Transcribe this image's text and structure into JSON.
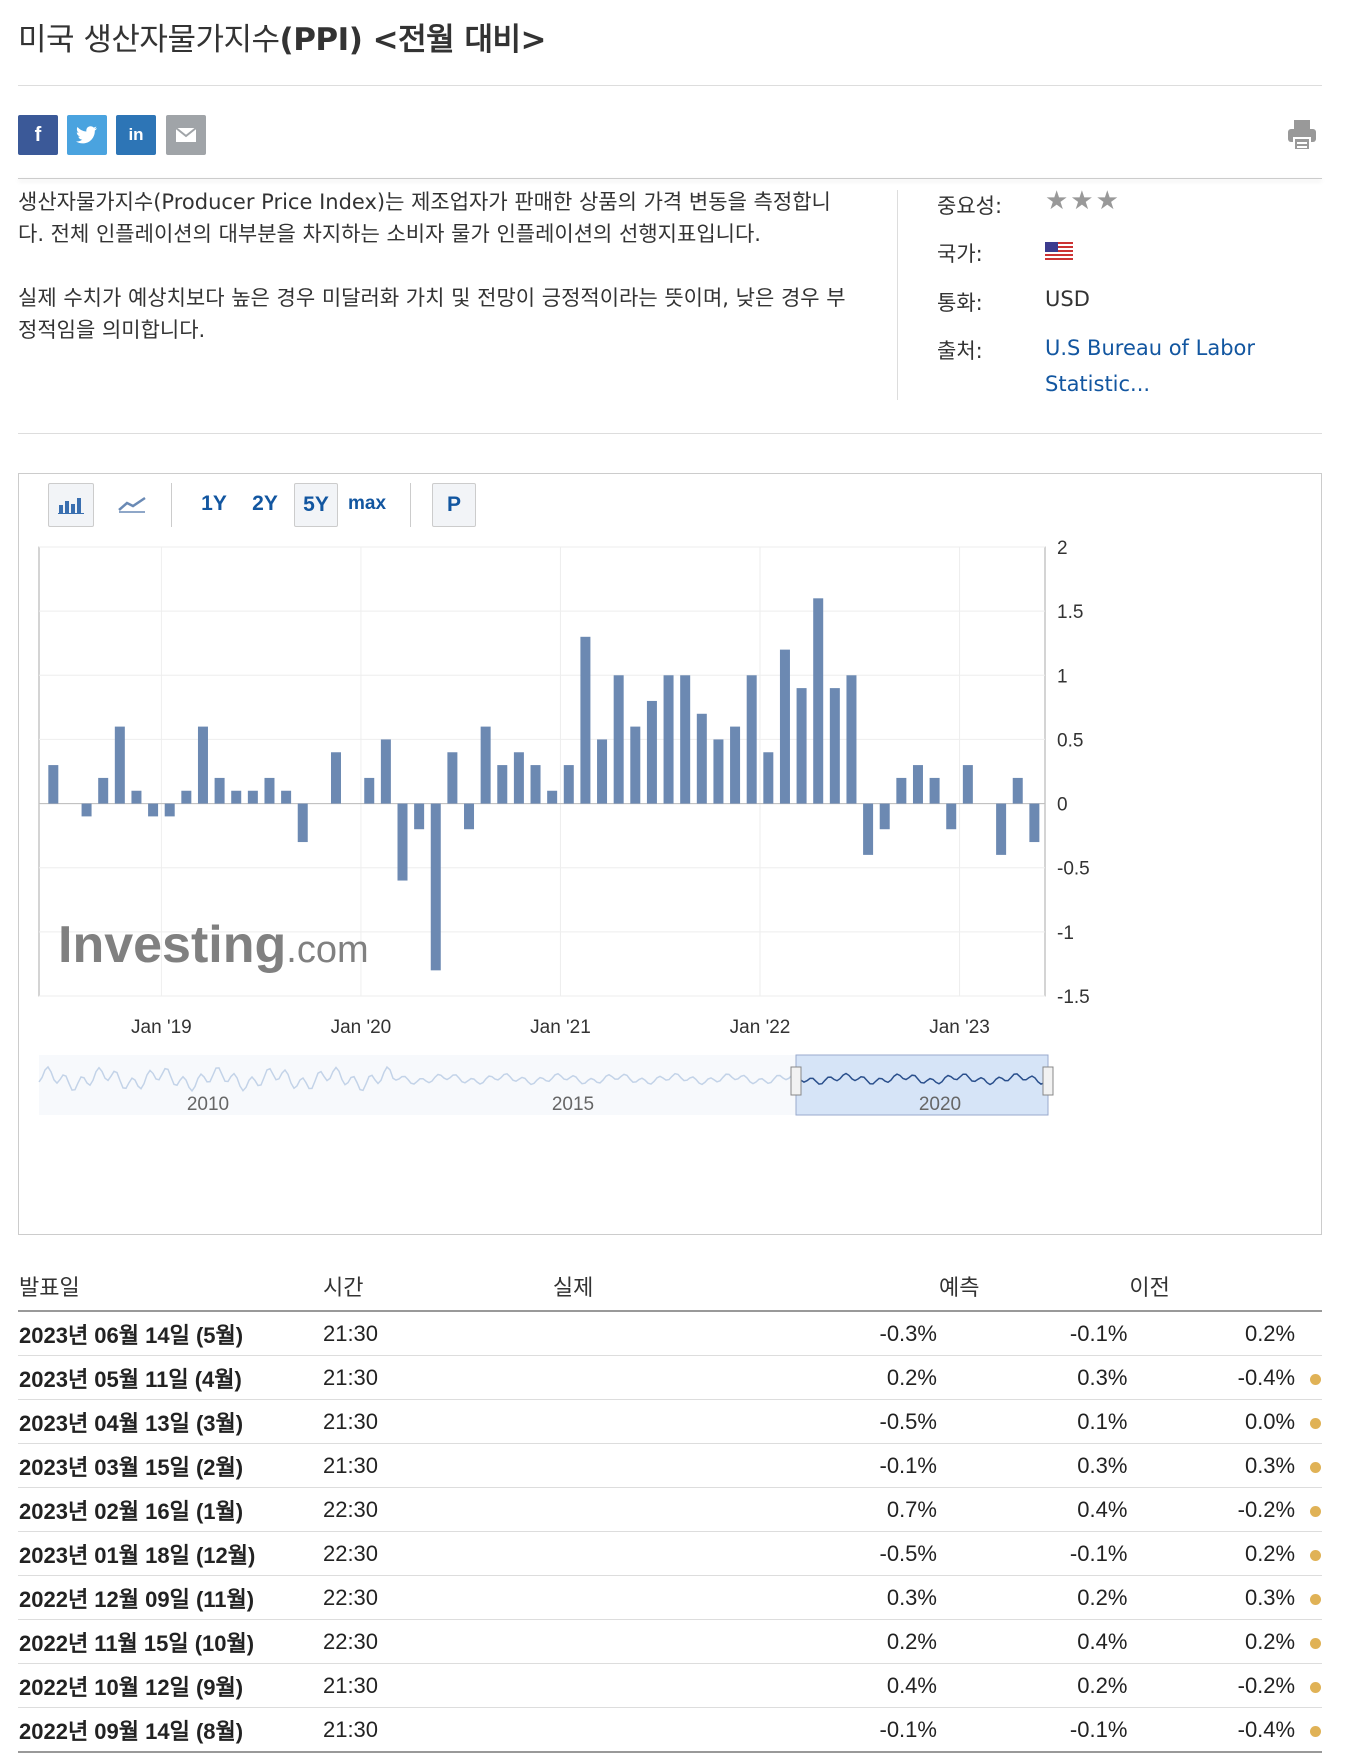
{
  "title": {
    "normal": "미국 생산자물가지수",
    "bold": "(PPI) <전월 대비>"
  },
  "share": {
    "facebook": "f",
    "twitter": "t",
    "linkedin": "in"
  },
  "description": [
    "생산자물가지수(Producer Price Index)는 제조업자가 판매한 상품의 가격 변동을 측정합니다. 전체 인플레이션의 대부분을 차지하는 소비자 물가 인플레이션의 선행지표입니다.",
    "실제 수치가 예상치보다 높은 경우 미달러화 가치 및 전망이 긍정적이라는 뜻이며, 낮은 경우 부정적임을 의미합니다."
  ],
  "meta": {
    "importance_label": "중요성:",
    "importance_stars": "★★★",
    "country_label": "국가:",
    "country_icon": "us-flag-icon",
    "currency_label": "통화:",
    "currency": "USD",
    "source_label": "출처:",
    "source": "U.S Bureau of Labor Statistic..."
  },
  "toolbar": {
    "periods": [
      "1Y",
      "2Y",
      "5Y",
      "max"
    ],
    "selected": "5Y",
    "p": "P"
  },
  "colors": {
    "bar": "#6c89b2",
    "positive": "#e2231a",
    "negative": "#1a73d9",
    "dot": "#e0b256",
    "link": "#1256a0"
  },
  "chart_data": {
    "type": "bar",
    "title": "",
    "ylim": [
      -1.5,
      2
    ],
    "yticks": [
      "2",
      "1.5",
      "1",
      "0.5",
      "0",
      "-0.5",
      "-1",
      "-1.5"
    ],
    "xticks": [
      "Jan '19",
      "Jan '20",
      "Jan '21",
      "Jan '22",
      "Jan '23"
    ],
    "xtick_month_index": [
      7,
      19,
      31,
      43,
      55
    ],
    "start_month": "2018-06",
    "values": [
      0.3,
      0.0,
      -0.1,
      0.2,
      0.6,
      0.1,
      -0.1,
      -0.1,
      0.1,
      0.6,
      0.2,
      0.1,
      0.1,
      0.2,
      0.1,
      -0.3,
      0.0,
      0.4,
      0.0,
      0.2,
      0.5,
      -0.6,
      -0.2,
      -1.3,
      0.4,
      -0.2,
      0.6,
      0.3,
      0.4,
      0.3,
      0.1,
      0.3,
      1.3,
      0.5,
      1.0,
      0.6,
      0.8,
      1.0,
      1.0,
      0.7,
      0.5,
      0.6,
      1.0,
      0.4,
      1.2,
      0.9,
      1.6,
      0.9,
      1.0,
      -0.4,
      -0.2,
      0.2,
      0.3,
      0.2,
      -0.2,
      0.3,
      0.0,
      -0.4,
      0.2,
      -0.3
    ],
    "watermark": "Investing.com",
    "navigator_labels": [
      "2010",
      "2015",
      "2020"
    ]
  },
  "table": {
    "headers": {
      "date": "발표일",
      "time": "시간",
      "actual": "실제",
      "forecast": "예측",
      "previous": "이전"
    },
    "rows": [
      {
        "date": "2023년 06월 14일 (5월)",
        "time": "21:30",
        "actual": "-0.3%",
        "actual_cls": "neg",
        "forecast": "-0.1%",
        "previous": "0.2%",
        "prev_cls": "neu",
        "dot": false
      },
      {
        "date": "2023년 05월 11일 (4월)",
        "time": "21:30",
        "actual": "0.2%",
        "actual_cls": "neg",
        "forecast": "0.3%",
        "previous": "-0.4%",
        "prev_cls": "pos",
        "dot": true
      },
      {
        "date": "2023년 04월 13일 (3월)",
        "time": "21:30",
        "actual": "-0.5%",
        "actual_cls": "neg",
        "forecast": "0.1%",
        "previous": "0.0%",
        "prev_cls": "pos",
        "dot": true
      },
      {
        "date": "2023년 03월 15일 (2월)",
        "time": "21:30",
        "actual": "-0.1%",
        "actual_cls": "neg",
        "forecast": "0.3%",
        "previous": "0.3%",
        "prev_cls": "neg",
        "dot": true
      },
      {
        "date": "2023년 02월 16일 (1월)",
        "time": "22:30",
        "actual": "0.7%",
        "actual_cls": "pos",
        "forecast": "0.4%",
        "previous": "-0.2%",
        "prev_cls": "pos",
        "dot": true
      },
      {
        "date": "2023년 01월 18일 (12월)",
        "time": "22:30",
        "actual": "-0.5%",
        "actual_cls": "neg",
        "forecast": "-0.1%",
        "previous": "0.2%",
        "prev_cls": "neg",
        "dot": true
      },
      {
        "date": "2022년 12월 09일 (11월)",
        "time": "22:30",
        "actual": "0.3%",
        "actual_cls": "pos",
        "forecast": "0.2%",
        "previous": "0.3%",
        "prev_cls": "pos",
        "dot": true
      },
      {
        "date": "2022년 11월 15일 (10월)",
        "time": "22:30",
        "actual": "0.2%",
        "actual_cls": "neg",
        "forecast": "0.4%",
        "previous": "0.2%",
        "prev_cls": "neg",
        "dot": true
      },
      {
        "date": "2022년 10월 12일 (9월)",
        "time": "21:30",
        "actual": "0.4%",
        "actual_cls": "pos",
        "forecast": "0.2%",
        "previous": "-0.2%",
        "prev_cls": "neg",
        "dot": true
      },
      {
        "date": "2022년 09월 14일 (8월)",
        "time": "21:30",
        "actual": "-0.1%",
        "actual_cls": "neu",
        "forecast": "-0.1%",
        "previous": "-0.4%",
        "prev_cls": "pos",
        "dot": true
      }
    ]
  }
}
